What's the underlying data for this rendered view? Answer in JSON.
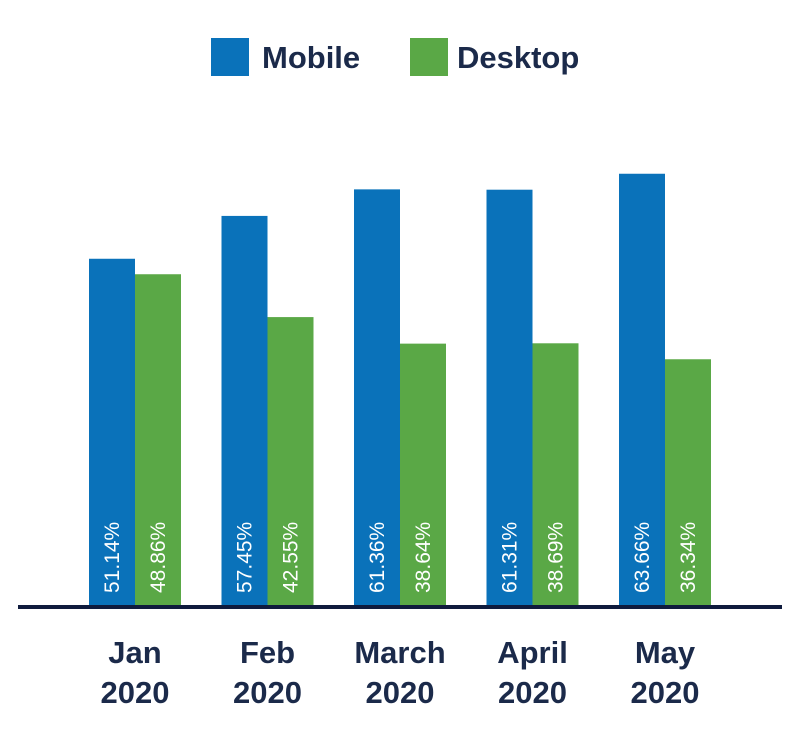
{
  "colors": {
    "mobile": "#0a72ba",
    "desktop": "#5aa846",
    "axis": "#0f1b3d",
    "text": "#1b2a4a"
  },
  "chart_data": {
    "type": "bar",
    "categories": [
      [
        "Jan",
        "2020"
      ],
      [
        "Feb",
        "2020"
      ],
      [
        "March",
        "2020"
      ],
      [
        "April",
        "2020"
      ],
      [
        "May",
        "2020"
      ]
    ],
    "series": [
      {
        "name": "Mobile",
        "values": [
          51.14,
          57.45,
          61.36,
          61.31,
          63.66
        ],
        "labels": [
          "51.14%",
          "57.45%",
          "61.36%",
          "61.31%",
          "63.66%"
        ]
      },
      {
        "name": "Desktop",
        "values": [
          48.86,
          42.55,
          38.64,
          38.69,
          36.34
        ],
        "labels": [
          "48.86%",
          "42.55%",
          "38.64%",
          "38.69%",
          "36.34%"
        ]
      }
    ],
    "ylim": [
      0,
      100
    ],
    "grid": false,
    "legend": "top-center",
    "title": "",
    "xlabel": "",
    "ylabel": ""
  }
}
